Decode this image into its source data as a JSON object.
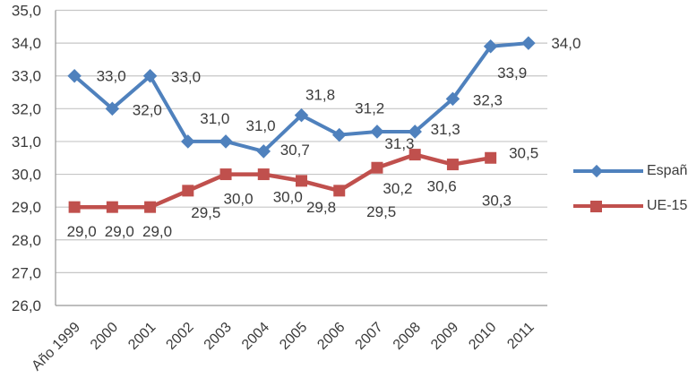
{
  "chart_data": {
    "type": "line",
    "title": "",
    "xlabel": "",
    "ylabel": "",
    "categories": [
      "Año 1999",
      "2000",
      "2001",
      "2002",
      "2003",
      "2004",
      "2005",
      "2006",
      "2007",
      "2008",
      "2009",
      "2010",
      "2011"
    ],
    "series": [
      {
        "name": "España",
        "color": "#4F81BD",
        "marker": "diamond",
        "values": [
          33.0,
          32.0,
          33.0,
          31.0,
          31.0,
          30.7,
          31.8,
          31.2,
          31.3,
          31.3,
          32.3,
          33.9,
          34.0
        ],
        "labels": [
          "33,0",
          "32,0",
          "33,0",
          "31,0",
          "31,0",
          "30,7",
          "31,8",
          "31,2",
          "31,3",
          "31,3",
          "32,3",
          "33,9",
          "34,0"
        ],
        "label_offsets": [
          [
            41,
            0
          ],
          [
            39,
            1
          ],
          [
            40,
            1
          ],
          [
            30,
            -26
          ],
          [
            39,
            -18
          ],
          [
            35,
            -2
          ],
          [
            21,
            -23
          ],
          [
            34,
            -30
          ],
          [
            25,
            13
          ],
          [
            34,
            -3
          ],
          [
            39,
            1
          ],
          [
            24,
            29
          ],
          [
            42,
            0
          ]
        ]
      },
      {
        "name": "UE-15",
        "color": "#C0504D",
        "marker": "square",
        "values": [
          29.0,
          29.0,
          29.0,
          29.5,
          30.0,
          30.0,
          29.8,
          29.5,
          30.2,
          30.6,
          30.3,
          30.5
        ],
        "labels": [
          "29,0",
          "29,0",
          "29,0",
          "29,5",
          "30,0",
          "30,0",
          "29,8",
          "29,5",
          "30,2",
          "30,6",
          "30,3",
          "30,5"
        ],
        "label_offsets": [
          [
            8,
            27
          ],
          [
            8,
            27
          ],
          [
            8,
            27
          ],
          [
            20,
            24
          ],
          [
            14,
            27
          ],
          [
            27,
            25
          ],
          [
            22,
            29
          ],
          [
            47,
            23
          ],
          [
            23,
            23
          ],
          [
            30,
            35
          ],
          [
            49,
            40
          ],
          [
            37,
            -6
          ]
        ]
      }
    ],
    "ylim": [
      26,
      35
    ],
    "yticks": [
      {
        "value": 35,
        "label": "35,0"
      },
      {
        "value": 34,
        "label": "34,0"
      },
      {
        "value": 33,
        "label": "33,0"
      },
      {
        "value": 32,
        "label": "32,0"
      },
      {
        "value": 31,
        "label": "31,0"
      },
      {
        "value": 30,
        "label": "30,0"
      },
      {
        "value": 29,
        "label": "29,0"
      },
      {
        "value": 28,
        "label": "28,0"
      },
      {
        "value": 27,
        "label": "27,0"
      },
      {
        "value": 26,
        "label": "26,0"
      }
    ],
    "grid": true,
    "legend_position": "right",
    "colors": {
      "grid": "#C6C6C6",
      "axis": "#969696",
      "text": "#3B3B3B",
      "background": "#FFFFFF"
    }
  }
}
